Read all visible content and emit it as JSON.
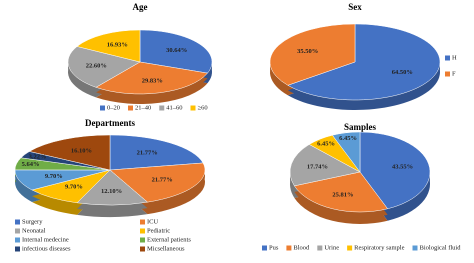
{
  "chart_data": [
    {
      "type": "pie",
      "title": "Age",
      "legend": "bottom",
      "categories": [
        "0–20",
        "21–40",
        "41–60",
        "≥60"
      ],
      "values": [
        30.64,
        29.83,
        22.6,
        16.93
      ],
      "value_labels": [
        "30.64%",
        "29.83%",
        "22.60%",
        "16.93%"
      ],
      "colors": [
        "#4472c4",
        "#ed7d31",
        "#a5a5a5",
        "#ffc000"
      ]
    },
    {
      "type": "pie",
      "title": "Sex",
      "legend": "right",
      "categories": [
        "H",
        "F"
      ],
      "values": [
        64.5,
        35.5
      ],
      "value_labels": [
        "64.50%",
        "35.50%"
      ],
      "colors": [
        "#4472c4",
        "#ed7d31"
      ]
    },
    {
      "type": "pie",
      "title": "Departments",
      "legend": "bottom",
      "categories": [
        "Surgery",
        "ICU",
        "Neonatal",
        "Pediatric",
        "Internal medecine",
        "External patients",
        "infectious diseases",
        "Micsellaneous"
      ],
      "values": [
        21.77,
        21.77,
        12.1,
        9.7,
        9.7,
        5.64,
        3.22,
        16.1
      ],
      "value_labels": [
        "21.77%",
        "21.77%",
        "12.10%",
        "9.70%",
        "9.70%",
        "5.64%",
        "3.22%",
        "16.10%"
      ],
      "colors": [
        "#4472c4",
        "#ed7d31",
        "#a5a5a5",
        "#ffc000",
        "#5b9bd5",
        "#70ad47",
        "#264478",
        "#9e480e"
      ]
    },
    {
      "type": "pie",
      "title": "Samples",
      "legend": "bottom",
      "categories": [
        "Pus",
        "Blood",
        "Urine",
        "Respiratory sample",
        "Biological fluid"
      ],
      "values": [
        43.55,
        25.81,
        17.74,
        6.45,
        6.45
      ],
      "value_labels": [
        "43.55%",
        "25.81%",
        "17.74%",
        "6.45%",
        "6.45%"
      ],
      "colors": [
        "#4472c4",
        "#ed7d31",
        "#a5a5a5",
        "#ffc000",
        "#5b9bd5"
      ]
    }
  ]
}
